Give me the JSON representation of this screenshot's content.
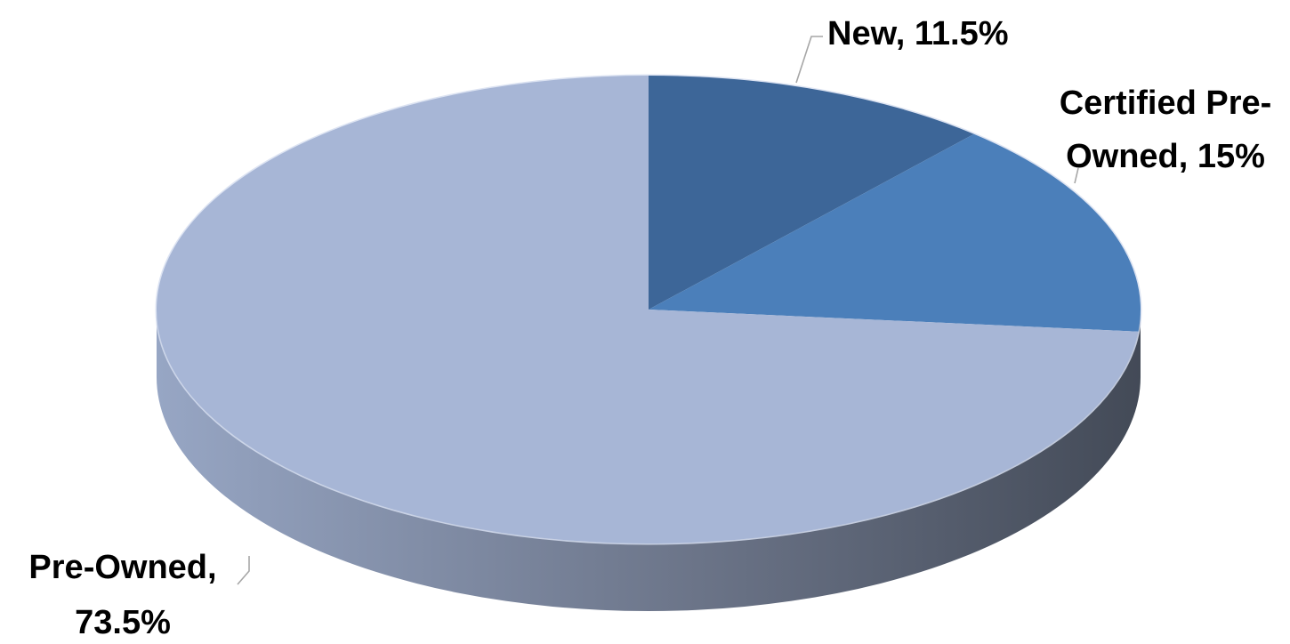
{
  "chart_data": {
    "type": "pie",
    "style": "3d",
    "title": "",
    "series": [
      {
        "slices": [
          {
            "label": "New",
            "value": 11.5,
            "label_lines": [
              "New, 11.5%"
            ],
            "color": "#3d6698"
          },
          {
            "label": "Certified Pre-Owned",
            "value": 15,
            "label_lines": [
              "Certified Pre-",
              "Owned, 15%"
            ],
            "color": "#4b7fba"
          },
          {
            "label": "Pre-Owned",
            "value": 73.5,
            "label_lines": [
              "Pre-Owned,",
              "73.5%"
            ],
            "color": "#a7b6d6"
          }
        ]
      }
    ],
    "start_angle": "12 o'clock",
    "direction": "clockwise",
    "legend": "none",
    "side_colors": {
      "light": "#97a6c4",
      "dark": "#434a57"
    }
  }
}
